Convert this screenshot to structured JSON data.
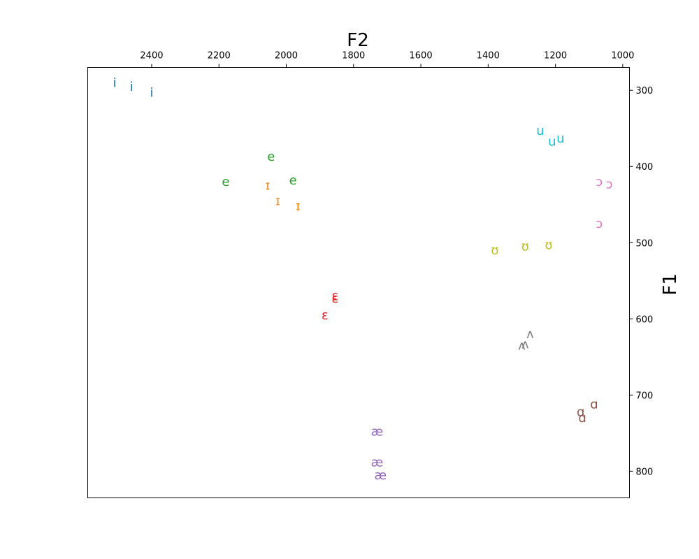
{
  "chart_data": {
    "type": "scatter",
    "title": "",
    "xlabel": "F2",
    "ylabel": "F1",
    "xlim": [
      2590,
      980
    ],
    "ylim": [
      835,
      270
    ],
    "x_axis_position": "top",
    "y_axis_position": "right",
    "grid": false,
    "x_ticks": [
      2400,
      2200,
      2000,
      1800,
      1600,
      1400,
      1200,
      1000
    ],
    "y_ticks": [
      300,
      400,
      500,
      600,
      700,
      800
    ],
    "series": [
      {
        "symbol": "i",
        "color": "#1f77b4",
        "points": [
          [
            2510,
            290
          ],
          [
            2460,
            295
          ],
          [
            2400,
            303
          ]
        ]
      },
      {
        "symbol": "ɪ",
        "color": "#ff7f0e",
        "points": [
          [
            2055,
            425
          ],
          [
            2025,
            445
          ],
          [
            1965,
            452
          ]
        ]
      },
      {
        "symbol": "e",
        "color": "#2ca02c",
        "points": [
          [
            2045,
            387
          ],
          [
            2180,
            420
          ],
          [
            1980,
            418
          ]
        ]
      },
      {
        "symbol": "ɛ",
        "color": "#d62728",
        "points": [
          [
            1855,
            570
          ],
          [
            1855,
            573
          ],
          [
            1885,
            595
          ]
        ]
      },
      {
        "symbol": "æ",
        "color": "#9467bd",
        "points": [
          [
            1730,
            748
          ],
          [
            1730,
            788
          ],
          [
            1720,
            805
          ]
        ]
      },
      {
        "symbol": "ɑ",
        "color": "#8c564b",
        "points": [
          [
            1085,
            712
          ],
          [
            1125,
            722
          ],
          [
            1120,
            730
          ]
        ]
      },
      {
        "symbol": "ɔ",
        "color": "#e377c2",
        "points": [
          [
            1070,
            420
          ],
          [
            1040,
            423
          ],
          [
            1070,
            475
          ]
        ]
      },
      {
        "symbol": "ʊ",
        "color": "#bcbd22",
        "points": [
          [
            1380,
            510
          ],
          [
            1290,
            505
          ],
          [
            1220,
            503
          ]
        ]
      },
      {
        "symbol": "u",
        "color": "#17becf",
        "points": [
          [
            1245,
            353
          ],
          [
            1210,
            367
          ],
          [
            1185,
            363
          ]
        ]
      },
      {
        "symbol": "ʌ",
        "color": "#7f7f7f",
        "points": [
          [
            1275,
            620
          ],
          [
            1300,
            635
          ],
          [
            1290,
            633
          ]
        ]
      }
    ]
  }
}
